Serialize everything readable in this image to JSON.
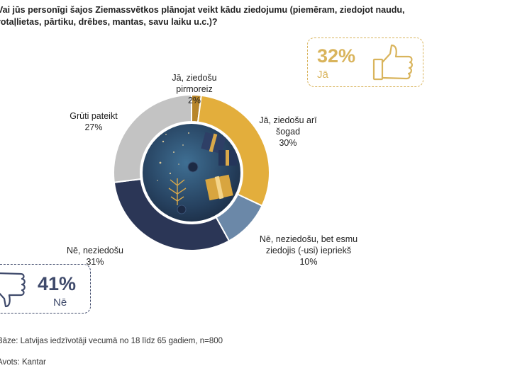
{
  "question": "Vai jūs personīgi šajos Ziemassvētkos plānojat veikt kādu ziedojumu (piemēram, ziedojot naudu,\nrotaļlietas, pārtiku, drēbes, mantas, savu laiku u.c.)?",
  "colors": {
    "yes_first": "#b8862b",
    "yes_again": "#e3ae3c",
    "no_before": "#6b88a8",
    "no": "#2b3656",
    "unsure": "#c3c3c3",
    "yes_badge": "#d9b45c",
    "no_badge": "#3f4a6b"
  },
  "chart_data": {
    "type": "pie",
    "donut": true,
    "slices": [
      {
        "label": "Jā, ziedošu\npirmoreiz",
        "value": 2,
        "value_label": "2%",
        "color": "#b8862b"
      },
      {
        "label": "Jā, ziedošu arī\nšogad",
        "value": 30,
        "value_label": "30%",
        "color": "#e3ae3c"
      },
      {
        "label": "Nē, neziedošu, bet esmu\nziedojis (-usi) iepriekš",
        "value": 10,
        "value_label": "10%",
        "color": "#6b88a8"
      },
      {
        "label": "Nē, neziedošu",
        "value": 31,
        "value_label": "31%",
        "color": "#2b3656"
      },
      {
        "label": "Grūti pateikt",
        "value": 27,
        "value_label": "27%",
        "color": "#c3c3c3"
      }
    ],
    "center_image": "christmas-decoration"
  },
  "yes_total": {
    "value": "32%",
    "label": "Jā",
    "icon": "thumbs-up-icon"
  },
  "no_total": {
    "value": "41%",
    "label": "Nē",
    "icon": "thumbs-down-icon"
  },
  "footer": {
    "line1": "Bāze: Latvijas iedzīvotāji vecumā no 18 līdz 65 gadiem, n=800",
    "line2": "Avots: Kantar"
  }
}
